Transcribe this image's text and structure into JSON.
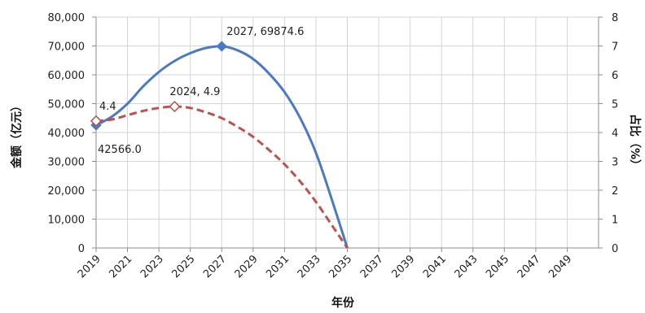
{
  "chart_data": {
    "type": "line",
    "title": "",
    "xlabel": "年份",
    "ylabel_left": "金额（亿元）",
    "ylabel_right": "占比（%）",
    "x_ticks": [
      "2019",
      "2021",
      "2023",
      "2025",
      "2027",
      "2029",
      "2031",
      "2033",
      "2035",
      "2037",
      "2039",
      "2041",
      "2043",
      "2045",
      "2047",
      "2049"
    ],
    "xlim": [
      2019,
      2051
    ],
    "ylim_left": [
      0,
      80000
    ],
    "ylim_right": [
      0,
      8
    ],
    "y_ticks_left": [
      "0",
      "10,000",
      "20,000",
      "30,000",
      "40,000",
      "50,000",
      "60,000",
      "70,000",
      "80,000"
    ],
    "y_ticks_right": [
      "0",
      "1",
      "2",
      "3",
      "4",
      "5",
      "6",
      "7",
      "8"
    ],
    "grid": true,
    "series": [
      {
        "axis": "left",
        "color": "#4a7ac3",
        "line_style": "solid",
        "x": [
          2019,
          2020,
          2021,
          2022,
          2023,
          2024,
          2025,
          2026,
          2027,
          2028,
          2029,
          2030,
          2031,
          2032,
          2033,
          2034,
          2035
        ],
        "values": [
          42566.0,
          45500,
          50000,
          56000,
          61000,
          64800,
          67500,
          69300,
          69874.6,
          68500,
          65500,
          60500,
          54000,
          45000,
          33000,
          17000,
          0
        ]
      },
      {
        "axis": "right",
        "color": "#c0504d",
        "line_style": "dashed",
        "x": [
          2019,
          2020,
          2021,
          2022,
          2023,
          2024,
          2025,
          2026,
          2027,
          2028,
          2029,
          2030,
          2031,
          2032,
          2033,
          2034,
          2035
        ],
        "values": [
          4.4,
          4.45,
          4.6,
          4.75,
          4.85,
          4.9,
          4.85,
          4.7,
          4.5,
          4.2,
          3.85,
          3.4,
          2.9,
          2.3,
          1.6,
          0.8,
          0
        ]
      }
    ],
    "annotations": [
      {
        "series": 0,
        "x": 2027,
        "y": 69874.6,
        "text": "2027, 69874.6",
        "marker": "diamond-filled"
      },
      {
        "series": 0,
        "x": 2019,
        "y": 42566.0,
        "text": "42566.0",
        "marker": "diamond-filled"
      },
      {
        "series": 1,
        "x": 2024,
        "y": 4.9,
        "text": "2024, 4.9",
        "marker": "diamond-open"
      },
      {
        "series": 1,
        "x": 2019,
        "y": 4.4,
        "text": "4.4",
        "marker": "diamond-open"
      }
    ]
  }
}
